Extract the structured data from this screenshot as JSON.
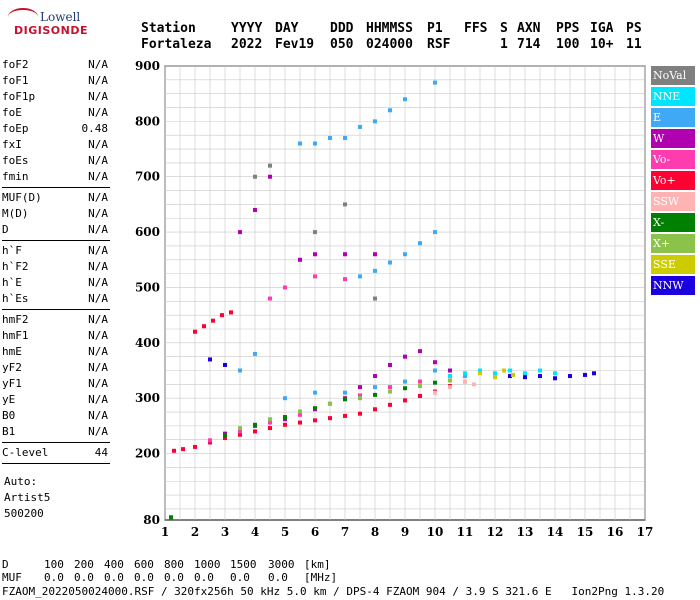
{
  "logo": {
    "line1": "Lowell",
    "line2": "DIGISONDE"
  },
  "header": {
    "cols": [
      {
        "label": "Station",
        "value": "Fortaleza",
        "x": 141
      },
      {
        "label": "YYYY",
        "value": "2022",
        "x": 231
      },
      {
        "label": "DAY",
        "value": "Fev19",
        "x": 275
      },
      {
        "label": "DDD",
        "value": "050",
        "x": 330
      },
      {
        "label": "HHMMSS",
        "value": "024000",
        "x": 366
      },
      {
        "label": "P1",
        "value": "RSF",
        "x": 427
      },
      {
        "label": "FFS",
        "value": "",
        "x": 464
      },
      {
        "label": "S",
        "value": "1",
        "x": 500
      },
      {
        "label": "AXN",
        "value": "714",
        "x": 517
      },
      {
        "label": "PPS",
        "value": "100",
        "x": 556
      },
      {
        "label": "IGA",
        "value": "10+",
        "x": 590
      },
      {
        "label": "PS",
        "value": "11",
        "x": 626
      }
    ]
  },
  "params": {
    "groups": [
      [
        [
          "foF2",
          "N/A"
        ],
        [
          "foF1",
          "N/A"
        ],
        [
          "foF1p",
          "N/A"
        ],
        [
          "foE",
          "N/A"
        ],
        [
          "foEp",
          "0.48"
        ],
        [
          "fxI",
          "N/A"
        ],
        [
          "foEs",
          "N/A"
        ],
        [
          "fmin",
          "N/A"
        ]
      ],
      [
        [
          "MUF(D)",
          "N/A"
        ],
        [
          "M(D)",
          "N/A"
        ],
        [
          "D",
          "N/A"
        ]
      ],
      [
        [
          "h`F",
          "N/A"
        ],
        [
          "h`F2",
          "N/A"
        ],
        [
          "h`E",
          "N/A"
        ],
        [
          "h`Es",
          "N/A"
        ]
      ],
      [
        [
          "hmF2",
          "N/A"
        ],
        [
          "hmF1",
          "N/A"
        ],
        [
          "hmE",
          "N/A"
        ],
        [
          "yF2",
          "N/A"
        ],
        [
          "yF1",
          "N/A"
        ],
        [
          "yE",
          "N/A"
        ],
        [
          "B0",
          "N/A"
        ],
        [
          "B1",
          "N/A"
        ]
      ],
      [
        [
          "C-level",
          "44"
        ]
      ]
    ],
    "auto": [
      "Auto:",
      "Artist5",
      "500200"
    ]
  },
  "legend": [
    {
      "label": "NoVal",
      "color": "#808080"
    },
    {
      "label": "NNE",
      "color": "#00e5ff"
    },
    {
      "label": "E",
      "color": "#3fa9f5"
    },
    {
      "label": "W",
      "color": "#b000b0"
    },
    {
      "label": "Vo-",
      "color": "#ff3bb0"
    },
    {
      "label": "Vo+",
      "color": "#ff0033"
    },
    {
      "label": "SSW",
      "color": "#ffb3b3"
    },
    {
      "label": "X-",
      "color": "#008000"
    },
    {
      "label": "X+",
      "color": "#8bc34a"
    },
    {
      "label": "SSE",
      "color": "#cccc00"
    },
    {
      "label": "NNW",
      "color": "#1a00e0"
    }
  ],
  "footer": {
    "d_label": "D",
    "d_values": [
      "100",
      "200",
      "400",
      "600",
      "800",
      "1000",
      "1500",
      "3000",
      "[km]"
    ],
    "muf_label": "MUF",
    "muf_values": [
      "0.0",
      "0.0",
      "0.0",
      "0.0",
      "0.0",
      "0.0",
      "0.0",
      "0.0",
      "[MHz]"
    ],
    "info": "FZAOM_2022050024000.RSF / 320fx256h 50 kHz 5.0 km / DPS-4 FZAOM 904 / 3.9 S 321.6 E   Ion2Png 1.3.20"
  },
  "chart_data": {
    "type": "scatter",
    "xlim": [
      1,
      17
    ],
    "ylim": [
      80,
      900
    ],
    "xticks": [
      1,
      2,
      3,
      4,
      5,
      6,
      7,
      8,
      9,
      10,
      11,
      12,
      13,
      14,
      15,
      16,
      17
    ],
    "yticks": [
      80,
      200,
      300,
      400,
      500,
      600,
      700,
      800,
      900
    ],
    "grid": true,
    "series": [
      {
        "name": "Vo+",
        "color": "#ff0033",
        "points": [
          [
            1.3,
            205
          ],
          [
            1.6,
            208
          ],
          [
            2.0,
            212
          ],
          [
            2.5,
            220
          ],
          [
            3.0,
            228
          ],
          [
            3.5,
            234
          ],
          [
            4.0,
            240
          ],
          [
            4.5,
            246
          ],
          [
            5.0,
            252
          ],
          [
            5.5,
            256
          ],
          [
            6.0,
            260
          ],
          [
            6.5,
            264
          ],
          [
            7.0,
            268
          ],
          [
            7.5,
            272
          ],
          [
            8.0,
            280
          ],
          [
            8.5,
            288
          ],
          [
            9.0,
            296
          ],
          [
            9.5,
            304
          ],
          [
            10.0,
            312
          ],
          [
            10.5,
            322
          ],
          [
            2.0,
            420
          ],
          [
            2.3,
            430
          ],
          [
            2.6,
            440
          ],
          [
            2.9,
            450
          ],
          [
            3.2,
            455
          ]
        ]
      },
      {
        "name": "W",
        "color": "#b000b0",
        "points": [
          [
            3.0,
            236
          ],
          [
            4.0,
            250
          ],
          [
            5.0,
            262
          ],
          [
            6.0,
            280
          ],
          [
            7.0,
            300
          ],
          [
            7.5,
            320
          ],
          [
            8.0,
            340
          ],
          [
            8.5,
            360
          ],
          [
            9.0,
            375
          ],
          [
            9.5,
            385
          ],
          [
            10.0,
            365
          ],
          [
            10.5,
            350
          ],
          [
            3.5,
            600
          ],
          [
            4.0,
            640
          ],
          [
            4.5,
            700
          ],
          [
            5.5,
            550
          ],
          [
            6.0,
            560
          ],
          [
            7.0,
            560
          ],
          [
            8.0,
            560
          ]
        ]
      },
      {
        "name": "Vo-",
        "color": "#ff3bb0",
        "points": [
          [
            2.5,
            224
          ],
          [
            3.5,
            240
          ],
          [
            4.5,
            256
          ],
          [
            5.5,
            270
          ],
          [
            6.5,
            290
          ],
          [
            7.5,
            305
          ],
          [
            8.5,
            320
          ],
          [
            9.5,
            330
          ],
          [
            10.5,
            340
          ],
          [
            11.0,
            330
          ],
          [
            4.5,
            480
          ],
          [
            5.0,
            500
          ],
          [
            6.0,
            520
          ],
          [
            7.0,
            515
          ]
        ]
      },
      {
        "name": "X-",
        "color": "#008000",
        "points": [
          [
            3.0,
            232
          ],
          [
            4.0,
            252
          ],
          [
            5.0,
            266
          ],
          [
            6.0,
            282
          ],
          [
            7.0,
            298
          ],
          [
            8.0,
            306
          ],
          [
            9.0,
            318
          ],
          [
            10.0,
            328
          ],
          [
            1.2,
            85
          ]
        ]
      },
      {
        "name": "X+",
        "color": "#8bc34a",
        "points": [
          [
            3.5,
            246
          ],
          [
            4.5,
            262
          ],
          [
            5.5,
            276
          ],
          [
            6.5,
            290
          ],
          [
            7.5,
            300
          ],
          [
            8.5,
            312
          ],
          [
            9.5,
            322
          ],
          [
            10.5,
            332
          ]
        ]
      },
      {
        "name": "E",
        "color": "#3fa9f5",
        "points": [
          [
            3.0,
            360
          ],
          [
            3.5,
            350
          ],
          [
            4.0,
            380
          ],
          [
            5.0,
            300
          ],
          [
            6.0,
            310
          ],
          [
            7.0,
            310
          ],
          [
            8.0,
            320
          ],
          [
            9.0,
            330
          ],
          [
            10.0,
            350
          ],
          [
            11.0,
            340
          ],
          [
            7.5,
            520
          ],
          [
            8.0,
            530
          ],
          [
            8.5,
            545
          ],
          [
            9.0,
            560
          ],
          [
            9.5,
            580
          ],
          [
            10.0,
            600
          ],
          [
            5.5,
            760
          ],
          [
            6.0,
            760
          ],
          [
            6.5,
            770
          ],
          [
            7.0,
            770
          ],
          [
            7.5,
            790
          ],
          [
            8.0,
            800
          ],
          [
            8.5,
            820
          ],
          [
            9.0,
            840
          ],
          [
            10.0,
            870
          ]
        ]
      },
      {
        "name": "NNE",
        "color": "#00e5ff",
        "points": [
          [
            10.5,
            340
          ],
          [
            11.0,
            345
          ],
          [
            11.5,
            350
          ],
          [
            12.0,
            345
          ],
          [
            12.5,
            350
          ],
          [
            13.0,
            345
          ],
          [
            13.5,
            350
          ],
          [
            14.0,
            345
          ]
        ]
      },
      {
        "name": "NNW",
        "color": "#1a00e0",
        "points": [
          [
            2.5,
            370
          ],
          [
            3.0,
            360
          ],
          [
            12.5,
            340
          ],
          [
            13.0,
            338
          ],
          [
            13.5,
            340
          ],
          [
            14.0,
            336
          ],
          [
            14.5,
            340
          ],
          [
            15.0,
            342
          ],
          [
            15.3,
            345
          ]
        ]
      },
      {
        "name": "SSE",
        "color": "#cccc00",
        "points": [
          [
            11.5,
            345
          ],
          [
            12.0,
            338
          ],
          [
            12.3,
            350
          ],
          [
            12.6,
            342
          ]
        ]
      },
      {
        "name": "SSW",
        "color": "#ffb3b3",
        "points": [
          [
            10.0,
            310
          ],
          [
            10.5,
            320
          ],
          [
            11.0,
            330
          ],
          [
            11.3,
            325
          ]
        ]
      },
      {
        "name": "NoVal",
        "color": "#808080",
        "points": [
          [
            4.0,
            700
          ],
          [
            4.5,
            720
          ],
          [
            6.0,
            600
          ],
          [
            7.0,
            650
          ],
          [
            8.0,
            480
          ]
        ]
      }
    ]
  }
}
